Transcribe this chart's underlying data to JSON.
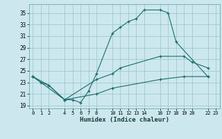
{
  "xlabel": "Humidex (Indice chaleur)",
  "bg_color": "#cce8ee",
  "grid_color": "#a0c8d0",
  "line_color": "#1a6b6b",
  "xlim": [
    -0.5,
    23.5
  ],
  "ylim": [
    18.5,
    36.5
  ],
  "xticks": [
    0,
    1,
    2,
    4,
    5,
    6,
    7,
    8,
    10,
    11,
    12,
    13,
    14,
    16,
    17,
    18,
    19,
    20,
    22,
    23
  ],
  "yticks": [
    19,
    21,
    23,
    25,
    27,
    29,
    31,
    33,
    35
  ],
  "line1_x": [
    0,
    1,
    2,
    4,
    5,
    6,
    7,
    8,
    10,
    11,
    12,
    13,
    14,
    16,
    17,
    18,
    22
  ],
  "line1_y": [
    24,
    23,
    22.5,
    20.0,
    20.0,
    19.5,
    21.5,
    24.5,
    31.5,
    32.5,
    33.5,
    34.0,
    35.5,
    35.5,
    35.0,
    30.0,
    24.0
  ],
  "line2_x": [
    0,
    4,
    8,
    10,
    11,
    16,
    19,
    20,
    22
  ],
  "line2_y": [
    24,
    20.0,
    23.5,
    24.5,
    25.5,
    27.5,
    27.5,
    26.5,
    25.5
  ],
  "line3_x": [
    0,
    2,
    4,
    8,
    10,
    16,
    19,
    22
  ],
  "line3_y": [
    24,
    22.5,
    20.0,
    21.0,
    22.0,
    23.5,
    24.0,
    24.0
  ]
}
